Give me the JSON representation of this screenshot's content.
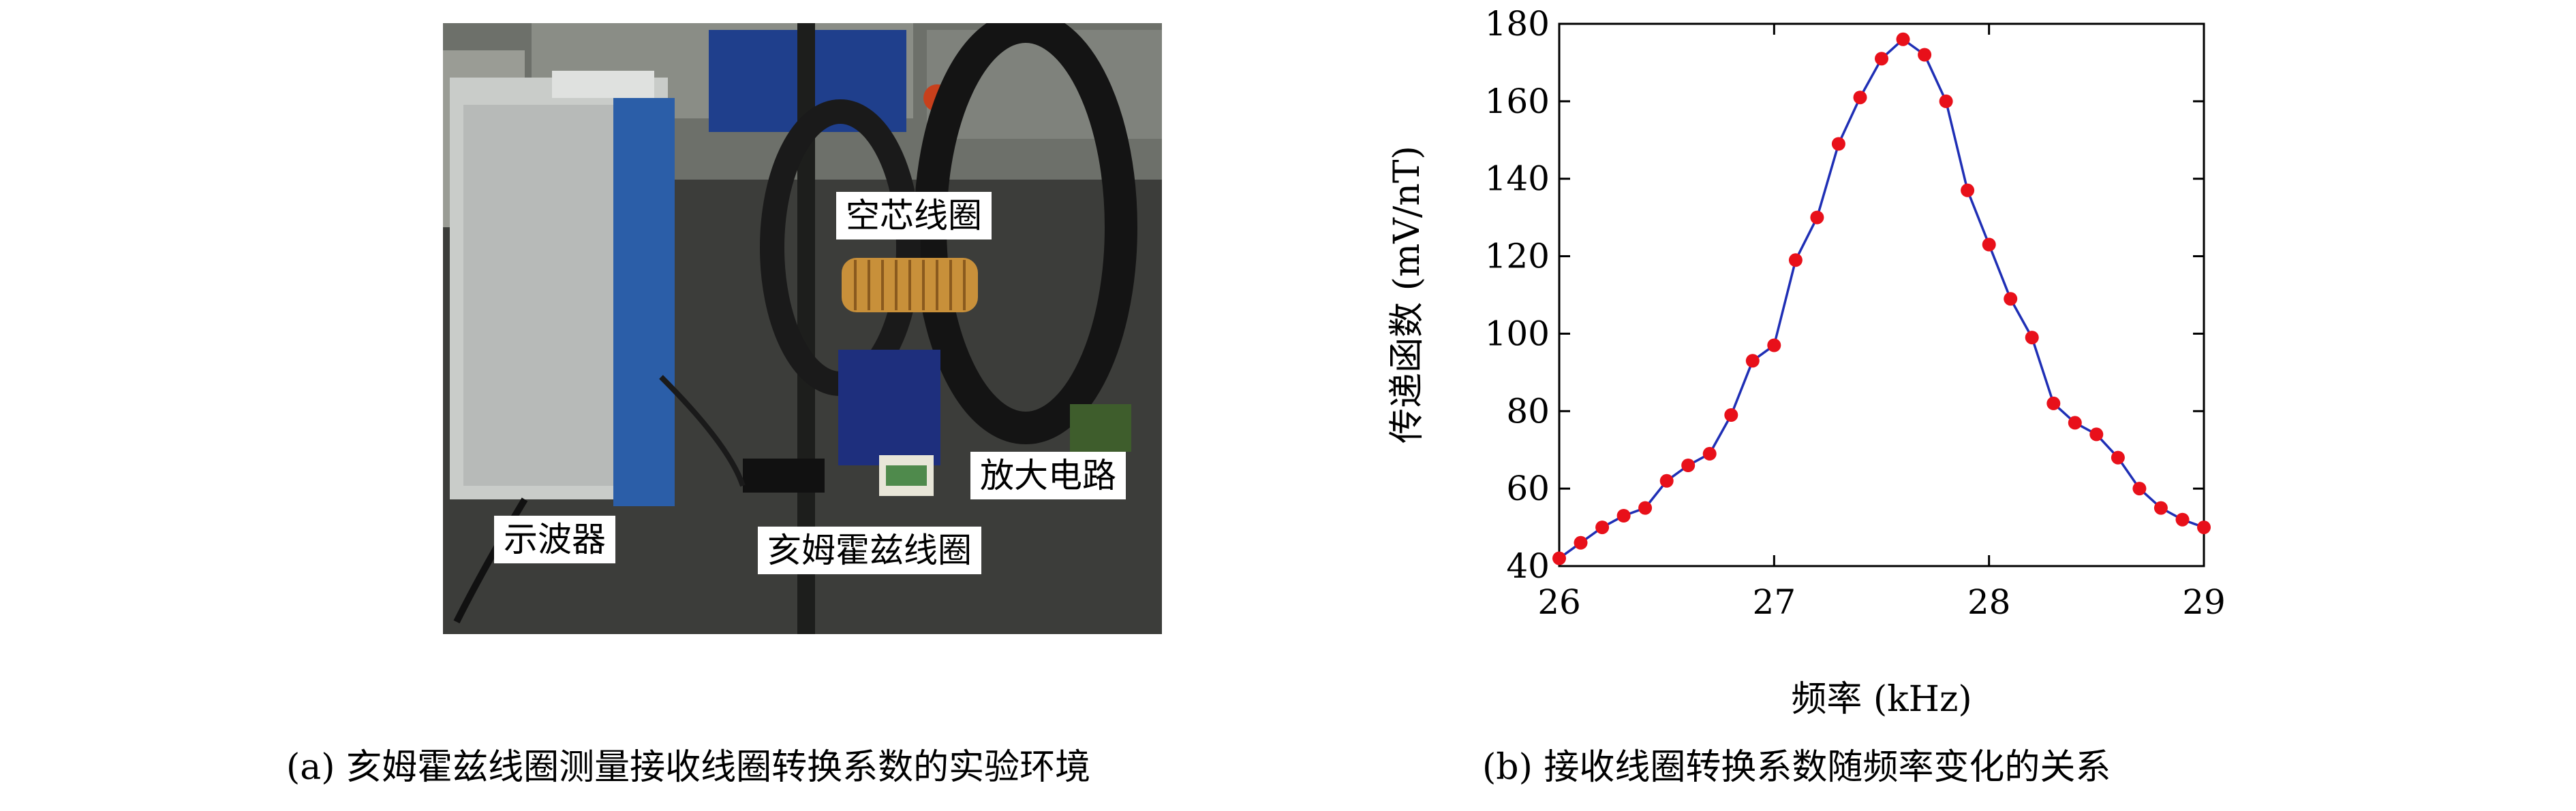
{
  "photo": {
    "labels": {
      "air_coil": "空芯线圈",
      "amplifier": "放大电路",
      "oscilloscope": "示波器",
      "helmholtz_coil": "亥姆霍兹线圈"
    }
  },
  "captions": {
    "left": "(a) 亥姆霍兹线圈测量接收线圈转换系数的实验环境",
    "right": "(b) 接收线圈转换系数随频率变化的关系"
  },
  "colors": {
    "line": "#1f2fb5",
    "marker": "#e8101a",
    "axis": "#000000"
  },
  "chart_data": {
    "type": "line",
    "title": "",
    "xlabel": "频率 (kHz)",
    "ylabel": "传递函数 (mV/nT)",
    "xlim": [
      26,
      29
    ],
    "ylim": [
      40,
      180
    ],
    "xticks": [
      26,
      27,
      28,
      29
    ],
    "yticks": [
      40,
      60,
      80,
      100,
      120,
      140,
      160,
      180
    ],
    "grid": false,
    "legend": "none",
    "series": [
      {
        "x": [
          26.0,
          26.1,
          26.2,
          26.3,
          26.4,
          26.5,
          26.6,
          26.7,
          26.8,
          26.9,
          27.0,
          27.1,
          27.2,
          27.3,
          27.4,
          27.5,
          27.6,
          27.7,
          27.8,
          27.9,
          28.0,
          28.1,
          28.2,
          28.3,
          28.4,
          28.5,
          28.6,
          28.7,
          28.8,
          28.9,
          29.0
        ],
        "y": [
          42,
          46,
          50,
          53,
          55,
          62,
          66,
          69,
          79,
          93,
          97,
          119,
          130,
          149,
          161,
          171,
          176,
          172,
          160,
          137,
          123,
          109,
          99,
          82,
          77,
          74,
          68,
          60,
          55,
          52,
          50
        ]
      }
    ]
  }
}
